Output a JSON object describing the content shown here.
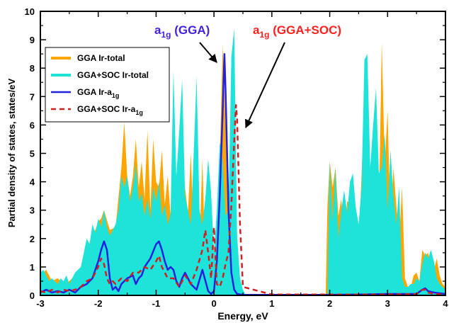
{
  "chart_data": {
    "type": "area",
    "xlabel": "Energy, eV",
    "ylabel": "Partial density of states, states/eV",
    "xlim": [
      -3,
      4
    ],
    "ylim": [
      0,
      10
    ],
    "x_ticks": [
      -3,
      -2,
      -1,
      0,
      1,
      2,
      3,
      4
    ],
    "y_ticks": [
      0,
      1,
      2,
      3,
      4,
      5,
      6,
      7,
      8,
      9,
      10
    ],
    "x_tick_labels": [
      "-3",
      "-2",
      "-1",
      "0",
      "1",
      "2",
      "3",
      "4"
    ],
    "y_tick_labels": [
      "0",
      "1",
      "2",
      "3",
      "4",
      "5",
      "6",
      "7",
      "8",
      "9",
      "10"
    ],
    "legend_position": "top-left",
    "annotations": [
      {
        "main": "a",
        "sub": "1g",
        "suffix": " (GGA)",
        "color": "#4422dd",
        "points_to": [
          0.15,
          8.3
        ]
      },
      {
        "main": "a",
        "sub": "1g",
        "suffix": " (GGA+SOC)",
        "color": "#ff2020",
        "points_to": [
          0.38,
          5.7
        ]
      }
    ],
    "series": [
      {
        "name": "GGA Ir-total",
        "style": "filled",
        "color": "#ffa500",
        "x": [
          -3.0,
          -2.9,
          -2.8,
          -2.7,
          -2.6,
          -2.5,
          -2.4,
          -2.3,
          -2.2,
          -2.1,
          -2.05,
          -2.0,
          -1.95,
          -1.9,
          -1.8,
          -1.7,
          -1.6,
          -1.55,
          -1.5,
          -1.45,
          -1.4,
          -1.35,
          -1.3,
          -1.25,
          -1.2,
          -1.15,
          -1.1,
          -1.05,
          -1.0,
          -0.95,
          -0.9,
          -0.85,
          -0.8,
          -0.75,
          -0.7,
          -0.65,
          -0.6,
          -0.55,
          -0.5,
          -0.45,
          -0.4,
          -0.35,
          -0.3,
          -0.25,
          -0.2,
          -0.15,
          -0.1,
          -0.05,
          0.0,
          0.05,
          0.1,
          0.15,
          0.2,
          0.25,
          0.3,
          0.35,
          0.4,
          0.45,
          0.5,
          0.55,
          1.93,
          1.96,
          2.0,
          2.05,
          2.1,
          2.15,
          2.2,
          2.25,
          2.3,
          2.35,
          2.4,
          2.45,
          2.5,
          2.55,
          2.6,
          2.65,
          2.7,
          2.75,
          2.8,
          2.85,
          2.9,
          2.95,
          3.0,
          3.05,
          3.1,
          3.15,
          3.2,
          3.25,
          3.3,
          3.35,
          3.4,
          3.45,
          3.5,
          3.55,
          3.6,
          3.65,
          3.7,
          3.75,
          3.8,
          3.85,
          3.9,
          3.95,
          4.0
        ],
        "y": [
          0.7,
          0.9,
          0.5,
          0.6,
          0.4,
          0.5,
          0.7,
          1.0,
          1.5,
          2.2,
          2.3,
          2.6,
          2.7,
          3.0,
          2.3,
          2.4,
          4.5,
          6.1,
          4.2,
          3.5,
          4.2,
          5.5,
          3.8,
          4.7,
          3.4,
          5.8,
          3.0,
          5.5,
          4.0,
          3.8,
          5.1,
          3.2,
          4.2,
          2.8,
          3.8,
          1.8,
          4.6,
          2.5,
          3.8,
          2.9,
          5.0,
          2.0,
          3.9,
          1.8,
          4.8,
          1.0,
          3.0,
          0.6,
          0.4,
          2.6,
          4.7,
          8.8,
          6.0,
          2.1,
          1.2,
          0.7,
          0.4,
          0.2,
          0.0,
          0.0,
          0.0,
          3.1,
          4.7,
          3.8,
          4.5,
          2.8,
          3.4,
          2.0,
          3.3,
          3.3,
          3.4,
          2.8,
          1.7,
          4.2,
          6.7,
          3.4,
          3.2,
          3.4,
          5.1,
          3.0,
          8.9,
          4.6,
          6.5,
          2.3,
          4.5,
          3.2,
          1.9,
          3.8,
          0.6,
          0.3,
          0.3,
          0.7,
          0.8,
          0.5,
          1.6,
          1.4,
          1.5,
          1.0,
          0.9,
          1.3,
          0.7,
          0.4,
          0.3
        ]
      },
      {
        "name": "GGA+SOC Ir-total",
        "style": "filled",
        "color": "#1ee3d8",
        "x": [
          -3.0,
          -2.95,
          -2.9,
          -2.85,
          -2.8,
          -2.75,
          -2.7,
          -2.65,
          -2.6,
          -2.55,
          -2.5,
          -2.45,
          -2.4,
          -2.35,
          -2.3,
          -2.25,
          -2.2,
          -2.15,
          -2.1,
          -2.05,
          -2.0,
          -1.95,
          -1.9,
          -1.85,
          -1.8,
          -1.75,
          -1.7,
          -1.65,
          -1.6,
          -1.55,
          -1.5,
          -1.45,
          -1.4,
          -1.35,
          -1.3,
          -1.25,
          -1.2,
          -1.15,
          -1.1,
          -1.05,
          -1.0,
          -0.95,
          -0.9,
          -0.85,
          -0.8,
          -0.75,
          -0.7,
          -0.65,
          -0.6,
          -0.55,
          -0.5,
          -0.45,
          -0.4,
          -0.35,
          -0.3,
          -0.25,
          -0.2,
          -0.15,
          -0.1,
          -0.05,
          0.0,
          0.05,
          0.1,
          0.15,
          0.2,
          0.25,
          0.3,
          0.35,
          0.4,
          0.45,
          0.5,
          0.55,
          1.96,
          2.0,
          2.05,
          2.1,
          2.15,
          2.2,
          2.25,
          2.3,
          2.35,
          2.4,
          2.45,
          2.5,
          2.55,
          2.6,
          2.65,
          2.7,
          2.75,
          2.8,
          2.85,
          2.9,
          2.95,
          3.0,
          3.05,
          3.1,
          3.15,
          3.2,
          3.25,
          3.3,
          3.35,
          3.4,
          3.45,
          3.5,
          3.55,
          3.6,
          3.65,
          3.7,
          3.75,
          3.8,
          3.85,
          3.9,
          3.95,
          4.0
        ],
        "y": [
          0.8,
          0.9,
          0.7,
          0.5,
          0.6,
          0.5,
          0.4,
          0.6,
          0.5,
          0.7,
          0.4,
          0.6,
          0.8,
          0.9,
          1.0,
          1.5,
          2.0,
          1.8,
          2.5,
          2.2,
          2.7,
          2.4,
          3.0,
          2.4,
          2.1,
          2.3,
          2.5,
          3.0,
          4.2,
          3.8,
          4.2,
          3.3,
          3.8,
          4.6,
          3.3,
          3.6,
          2.8,
          3.4,
          2.7,
          3.8,
          3.3,
          4.0,
          2.8,
          3.2,
          2.5,
          2.9,
          7.9,
          4.2,
          5.8,
          7.6,
          3.5,
          3.0,
          2.5,
          5.0,
          7.7,
          3.0,
          2.5,
          3.4,
          4.8,
          3.6,
          1.5,
          3.0,
          5.4,
          4.7,
          2.8,
          3.0,
          8.4,
          9.4,
          2.1,
          0.6,
          0.2,
          0.0,
          0.0,
          4.7,
          2.6,
          4.5,
          2.0,
          3.0,
          3.7,
          2.9,
          4.0,
          4.3,
          3.1,
          2.5,
          3.8,
          8.3,
          8.5,
          4.5,
          6.0,
          7.3,
          4.3,
          4.5,
          5.7,
          3.0,
          5.1,
          3.5,
          2.5,
          3.8,
          0.6,
          0.3,
          0.3,
          0.4,
          0.4,
          0.6,
          0.5,
          1.1,
          1.5,
          1.3,
          1.6,
          1.2,
          0.6,
          0.4,
          0.3,
          0.2
        ]
      },
      {
        "name": "GGA Ir-a",
        "name_sub": "1g",
        "style": "line",
        "color": "#2222dd",
        "x": [
          -3.0,
          -2.9,
          -2.8,
          -2.7,
          -2.6,
          -2.5,
          -2.4,
          -2.3,
          -2.2,
          -2.1,
          -2.0,
          -1.95,
          -1.9,
          -1.85,
          -1.8,
          -1.75,
          -1.7,
          -1.65,
          -1.6,
          -1.5,
          -1.4,
          -1.35,
          -1.3,
          -1.25,
          -1.2,
          -1.1,
          -1.0,
          -0.95,
          -0.9,
          -0.85,
          -0.8,
          -0.75,
          -0.7,
          -0.65,
          -0.6,
          -0.55,
          -0.5,
          -0.4,
          -0.3,
          -0.2,
          -0.1,
          -0.05,
          0.0,
          0.05,
          0.1,
          0.15,
          0.18,
          0.2,
          0.25,
          0.3,
          0.35,
          0.4,
          0.5,
          1.0,
          2.0,
          2.5,
          3.0,
          3.5,
          3.6,
          3.65,
          3.7,
          3.8,
          4.0
        ],
        "y": [
          0.1,
          0.2,
          0.1,
          0.15,
          0.1,
          0.2,
          0.1,
          0.3,
          0.4,
          0.6,
          1.2,
          1.6,
          1.9,
          1.6,
          0.6,
          0.2,
          0.3,
          0.15,
          0.4,
          0.6,
          0.7,
          0.4,
          0.6,
          0.7,
          1.0,
          1.3,
          1.8,
          1.9,
          1.6,
          1.2,
          0.9,
          1.0,
          0.9,
          0.5,
          0.3,
          0.6,
          0.8,
          0.4,
          0.2,
          0.9,
          0.15,
          0.05,
          0.15,
          1.2,
          3.5,
          6.5,
          8.5,
          7.2,
          3.0,
          0.8,
          0.2,
          0.05,
          0.02,
          0.02,
          0.02,
          0.03,
          0.05,
          0.05,
          0.2,
          0.25,
          0.15,
          0.1,
          0.05
        ]
      },
      {
        "name": "GGA+SOC Ir-a",
        "name_sub": "1g",
        "style": "dashed",
        "color": "#cc2222",
        "x": [
          -3.0,
          -2.9,
          -2.8,
          -2.7,
          -2.6,
          -2.5,
          -2.4,
          -2.3,
          -2.2,
          -2.1,
          -2.0,
          -1.95,
          -1.9,
          -1.85,
          -1.8,
          -1.75,
          -1.7,
          -1.6,
          -1.5,
          -1.4,
          -1.3,
          -1.2,
          -1.1,
          -1.0,
          -0.95,
          -0.9,
          -0.85,
          -0.8,
          -0.7,
          -0.6,
          -0.5,
          -0.4,
          -0.3,
          -0.2,
          -0.15,
          -0.1,
          -0.05,
          0.0,
          0.05,
          0.1,
          0.15,
          0.2,
          0.25,
          0.3,
          0.35,
          0.38,
          0.4,
          0.45,
          0.5,
          1.0,
          2.0,
          3.0,
          3.5,
          3.6,
          3.65,
          3.7,
          3.8,
          4.0
        ],
        "y": [
          0.15,
          0.1,
          0.2,
          0.1,
          0.2,
          0.15,
          0.2,
          0.3,
          0.5,
          0.6,
          1.0,
          1.3,
          1.1,
          0.6,
          0.4,
          0.5,
          0.4,
          0.6,
          0.5,
          0.8,
          0.8,
          1.0,
          0.9,
          1.2,
          1.4,
          1.0,
          0.8,
          0.6,
          0.6,
          0.3,
          0.7,
          0.4,
          0.9,
          1.6,
          2.3,
          1.5,
          0.6,
          2.4,
          0.4,
          0.3,
          0.6,
          1.1,
          1.5,
          3.2,
          5.4,
          6.7,
          6.2,
          2.5,
          0.3,
          0.03,
          0.03,
          0.03,
          0.05,
          0.2,
          0.2,
          0.1,
          0.05,
          0.03
        ]
      }
    ]
  }
}
